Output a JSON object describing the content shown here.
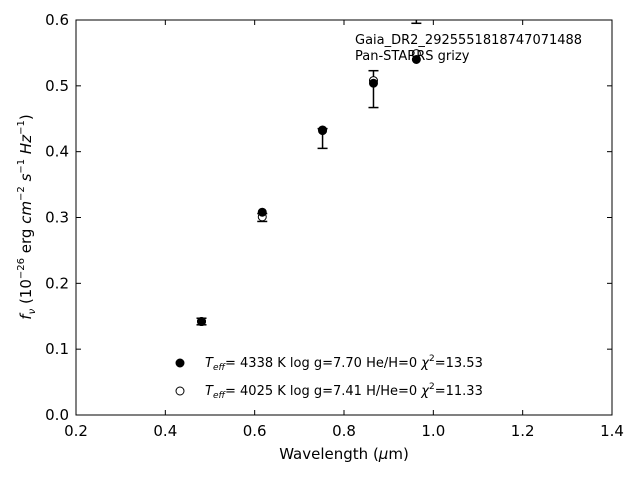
{
  "chart_data": {
    "type": "scatter",
    "annotation": [
      "Gaia_DR2_2925551818747071488",
      "Pan-STARRS grizy"
    ],
    "xlabel": "Wavelength (μm)",
    "ylabel": "f_ν (10^-26 erg cm^-2 s^-1 Hz^-1)",
    "xlim": [
      0.2,
      1.4
    ],
    "ylim": [
      0.0,
      0.6
    ],
    "xticks": [
      0.2,
      0.4,
      0.6,
      0.8,
      1.0,
      1.2,
      1.4
    ],
    "yticks": [
      0.0,
      0.1,
      0.2,
      0.3,
      0.4,
      0.5,
      0.6
    ],
    "grid": false,
    "observed": {
      "x": [
        0.481,
        0.617,
        0.752,
        0.866,
        0.962
      ],
      "y": [
        0.142,
        0.3,
        0.42,
        0.495,
        0.64
      ],
      "yerr": [
        0.005,
        0.006,
        0.015,
        0.028,
        0.045
      ]
    },
    "series": [
      {
        "marker": "filled",
        "x": [
          0.481,
          0.617,
          0.752,
          0.866,
          0.962
        ],
        "y": [
          0.142,
          0.308,
          0.433,
          0.504,
          0.54
        ],
        "legend": {
          "teff": "4338 K",
          "logg": "log g=7.70",
          "comp": "He/H=0",
          "chi2": "13.53"
        }
      },
      {
        "marker": "open",
        "x": [
          0.481,
          0.617,
          0.752,
          0.866,
          0.962
        ],
        "y": [
          0.142,
          0.301,
          0.432,
          0.508,
          0.549
        ],
        "legend": {
          "teff": "4025 K",
          "logg": "log g=7.41",
          "comp": "H/He=0",
          "chi2": "11.33"
        }
      }
    ],
    "legend_position": "lower-center"
  }
}
